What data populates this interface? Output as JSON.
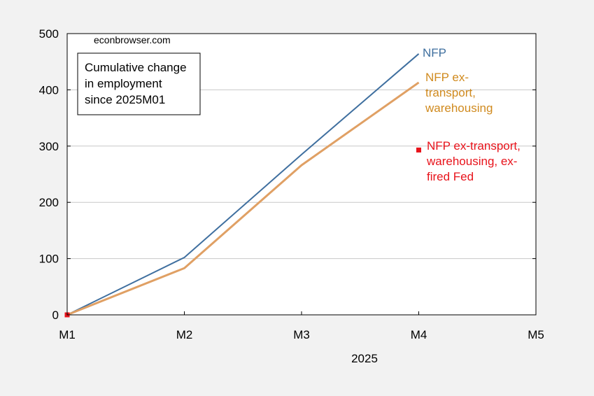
{
  "chart_data": {
    "type": "line",
    "title": "",
    "watermark": "econbrowser.com",
    "annotation_box": [
      "Cumulative change",
      "in employment",
      "since 2025M01"
    ],
    "x": [
      "M1",
      "M2",
      "M3",
      "M4"
    ],
    "x_tick_labels": [
      "M1",
      "M2",
      "M3",
      "M4",
      "M5"
    ],
    "xlabel": "2025",
    "ylabel": "",
    "ylim": [
      0,
      500
    ],
    "y_ticks": [
      0,
      100,
      200,
      300,
      400,
      500
    ],
    "grid": true,
    "series": [
      {
        "name": "NFP",
        "label_lines": [
          "NFP"
        ],
        "color": "#3f6f9f",
        "values": [
          0,
          102,
          285,
          464
        ]
      },
      {
        "name": "NFP ex-transport, warehousing",
        "label_lines": [
          "NFP ex-",
          "transport,",
          "warehousing"
        ],
        "color": "#e0a064",
        "label_color": "#d08a1e",
        "values": [
          0,
          83,
          266,
          413
        ]
      },
      {
        "name": "NFP ex-transport, warehousing, ex-fired Fed",
        "label_lines": [
          "NFP ex-transport,",
          "warehousing, ex-",
          "fired Fed"
        ],
        "color": "#e8131b",
        "type": "scatter",
        "points": [
          {
            "x": "M1",
            "y": 0
          },
          {
            "x": "M4",
            "y": 293
          }
        ]
      }
    ]
  }
}
